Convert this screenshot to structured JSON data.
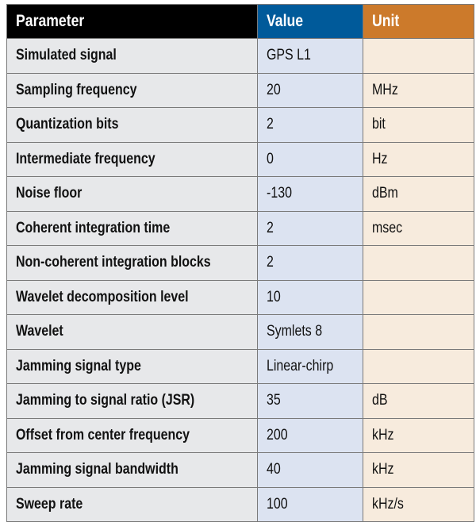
{
  "header": {
    "parameter": "Parameter",
    "value": "Value",
    "unit": "Unit"
  },
  "colors": {
    "header_parameter": "#000000",
    "header_value": "#005a9a",
    "header_unit": "#cc7a2b",
    "cell_parameter": "#e7e8ea",
    "cell_value": "#dce3f1",
    "cell_unit": "#f7ebdd"
  },
  "rows": [
    {
      "parameter": "Simulated signal",
      "value": "GPS L1",
      "unit": ""
    },
    {
      "parameter": "Sampling frequency",
      "value": "20",
      "unit": "MHz"
    },
    {
      "parameter": "Quantization bits",
      "value": "2",
      "unit": "bit"
    },
    {
      "parameter": "Intermediate frequency",
      "value": "0",
      "unit": "Hz"
    },
    {
      "parameter": "Noise floor",
      "value": "-130",
      "unit": "dBm"
    },
    {
      "parameter": "Coherent integration time",
      "value": "2",
      "unit": "msec"
    },
    {
      "parameter": "Non-coherent integration blocks",
      "value": "2",
      "unit": ""
    },
    {
      "parameter": "Wavelet decomposition level",
      "value": "10",
      "unit": ""
    },
    {
      "parameter": "Wavelet",
      "value": "Symlets 8",
      "unit": ""
    },
    {
      "parameter": "Jamming signal type",
      "value": "Linear-chirp",
      "unit": ""
    },
    {
      "parameter": "Jamming to signal ratio (JSR)",
      "value": "35",
      "unit": "dB"
    },
    {
      "parameter": "Offset from center frequency",
      "value": "200",
      "unit": "kHz"
    },
    {
      "parameter": "Jamming signal bandwidth",
      "value": "40",
      "unit": "kHz"
    },
    {
      "parameter": "Sweep rate",
      "value": "100",
      "unit": "kHz/s"
    }
  ]
}
